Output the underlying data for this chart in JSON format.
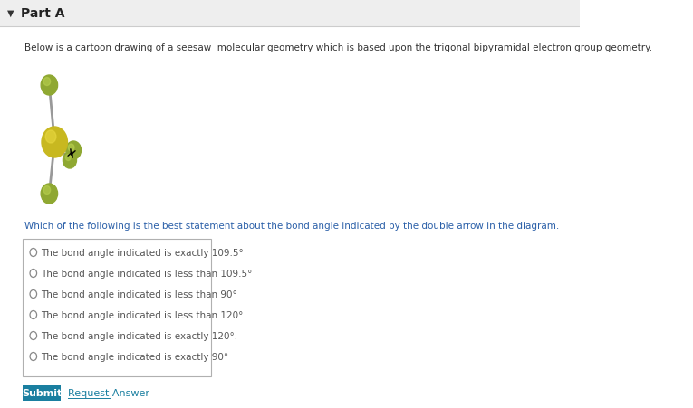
{
  "background_color": "#ffffff",
  "part_label": "Part A",
  "description": "Below is a cartoon drawing of a seesaw  molecular geometry which is based upon the trigonal bipyramidal electron group geometry.",
  "question": "Which of the following is the best statement about the bond angle indicated by the double arrow in the diagram.",
  "options": [
    "The bond angle indicated is exactly 109.5°",
    "The bond angle indicated is less than 109.5°",
    "The bond angle indicated is less than 90°",
    "The bond angle indicated is less than 120°.",
    "The bond angle indicated is exactly 120°.",
    "The bond angle indicated is exactly 90°"
  ],
  "submit_bg": "#1a7fa0",
  "submit_text": "Submit",
  "request_answer_text": "Request Answer",
  "header_bg": "#eeeeee",
  "box_border": "#b0b0b0",
  "desc_color": "#333333",
  "question_color": "#2a5fa8",
  "option_color": "#555555",
  "radio_color": "#888888"
}
